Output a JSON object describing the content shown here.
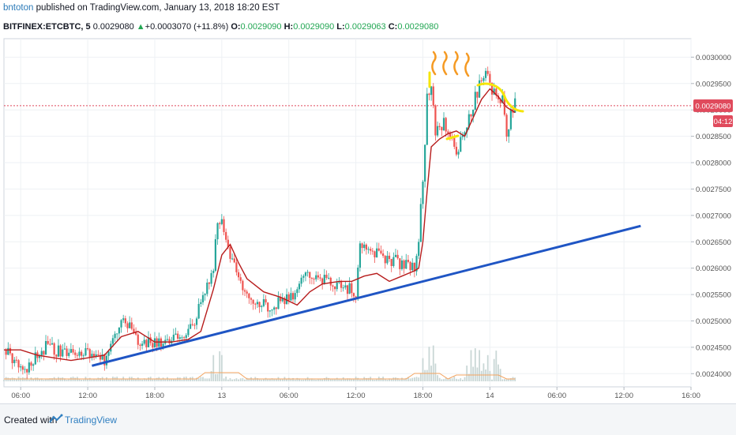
{
  "header": {
    "author": "bntoton",
    "published_text": "published on TradingView.com, January 13, 2018 18:20 EST",
    "symbol": "BITFINEX:ETCBTC, 5",
    "last": "0.0029080",
    "change_arrow": "▲",
    "change": "+0.0003070 (+11.8%)",
    "o_label": "O:",
    "o_value": "0.0029090",
    "h_label": "H:",
    "h_value": "0.0029090",
    "l_label": "L:",
    "l_value": "0.0029063",
    "c_label": "C:",
    "c_value": "0.0029080"
  },
  "price_badge": "0.0029080",
  "time_badge": "04:12",
  "footer": {
    "created_with": "Created with",
    "brand": "TradingView"
  },
  "colors": {
    "up": "#26a69a",
    "down": "#ef5350",
    "ma": "#b71c1c",
    "trendline": "#1f55c4",
    "annot_orange": "#f59a23",
    "annot_yellow": "#f5e50a",
    "badge": "#e04a5c",
    "volume_ma": "#f4a460"
  },
  "chart_data": {
    "type": "line",
    "title": "BITFINEX:ETCBTC, 5",
    "xlabel": "",
    "ylabel": "",
    "x_ticks": [
      "06:00",
      "12:00",
      "18:00",
      "13",
      "06:00",
      "12:00",
      "18:00",
      "14",
      "06:00",
      "12:00",
      "16:00"
    ],
    "y_ticks": [
      "0.0030000",
      "0.0029500",
      "0.0029000",
      "0.0028500",
      "0.0028000",
      "0.0027500",
      "0.0027000",
      "0.0026500",
      "0.0026000",
      "0.0025500",
      "0.0025000",
      "0.0024500",
      "0.0024000"
    ],
    "ylim": [
      0.002375,
      0.003035
    ],
    "grid": true,
    "last_price": 0.002908,
    "series": [
      {
        "name": "",
        "kind": "price",
        "points": [
          [
            0,
            0.002445
          ],
          [
            5,
            0.00241
          ],
          [
            10,
            0.00245
          ],
          [
            15,
            0.002435
          ],
          [
            20,
            0.00244
          ],
          [
            24,
            0.002425
          ],
          [
            28,
            0.00251
          ],
          [
            32,
            0.00246
          ],
          [
            36,
            0.002455
          ],
          [
            40,
            0.00246
          ],
          [
            45,
            0.002485
          ],
          [
            48,
            0.00256
          ],
          [
            50,
            0.0026
          ],
          [
            51,
            0.002695
          ],
          [
            52,
            0.002685
          ],
          [
            54,
            0.00262
          ],
          [
            57,
            0.002565
          ],
          [
            60,
            0.00254
          ],
          [
            63,
            0.00253
          ],
          [
            66,
            0.002535
          ],
          [
            69,
            0.002545
          ],
          [
            72,
            0.0026
          ],
          [
            75,
            0.00258
          ],
          [
            78,
            0.002575
          ],
          [
            81,
            0.002565
          ],
          [
            84,
            0.002555
          ],
          [
            85,
            0.00265
          ],
          [
            87,
            0.00264
          ],
          [
            90,
            0.00262
          ],
          [
            93,
            0.002615
          ],
          [
            96,
            0.002605
          ],
          [
            98,
            0.002605
          ],
          [
            99,
            0.00265
          ],
          [
            100,
            0.00277
          ],
          [
            101,
            0.00292
          ],
          [
            102,
            0.002955
          ],
          [
            103,
            0.00286
          ],
          [
            105,
            0.002875
          ],
          [
            107,
            0.002845
          ],
          [
            108,
            0.00281
          ],
          [
            110,
            0.002865
          ],
          [
            113,
            0.002935
          ],
          [
            115,
            0.002975
          ],
          [
            117,
            0.00293
          ],
          [
            119,
            0.002915
          ],
          [
            120,
            0.002855
          ],
          [
            121,
            0.002895
          ],
          [
            122,
            0.00291
          ]
        ]
      },
      {
        "name": "",
        "kind": "moving_average",
        "points": [
          [
            0,
            0.002445
          ],
          [
            4,
            0.002445
          ],
          [
            8,
            0.002435
          ],
          [
            12,
            0.00243
          ],
          [
            16,
            0.002425
          ],
          [
            20,
            0.00243
          ],
          [
            24,
            0.002435
          ],
          [
            28,
            0.00247
          ],
          [
            32,
            0.00248
          ],
          [
            36,
            0.00246
          ],
          [
            40,
            0.00246
          ],
          [
            44,
            0.002465
          ],
          [
            47,
            0.00248
          ],
          [
            50,
            0.00256
          ],
          [
            52,
            0.002625
          ],
          [
            54,
            0.002645
          ],
          [
            56,
            0.00261
          ],
          [
            58,
            0.00258
          ],
          [
            62,
            0.002555
          ],
          [
            66,
            0.002545
          ],
          [
            70,
            0.00253
          ],
          [
            73,
            0.002555
          ],
          [
            76,
            0.00257
          ],
          [
            80,
            0.002575
          ],
          [
            83,
            0.002575
          ],
          [
            86,
            0.002585
          ],
          [
            89,
            0.00259
          ],
          [
            92,
            0.002575
          ],
          [
            95,
            0.002585
          ],
          [
            98,
            0.002595
          ],
          [
            99,
            0.0026
          ],
          [
            100,
            0.00265
          ],
          [
            101,
            0.002745
          ],
          [
            102,
            0.00283
          ],
          [
            104,
            0.002845
          ],
          [
            106,
            0.002855
          ],
          [
            108,
            0.00286
          ],
          [
            110,
            0.00285
          ],
          [
            112,
            0.002885
          ],
          [
            114,
            0.00292
          ],
          [
            116,
            0.00294
          ],
          [
            118,
            0.002925
          ],
          [
            120,
            0.002905
          ],
          [
            122,
            0.002895
          ]
        ]
      },
      {
        "name": "",
        "kind": "trendline",
        "points": [
          [
            21,
            0.002415
          ],
          [
            152,
            0.00268
          ]
        ]
      }
    ]
  }
}
